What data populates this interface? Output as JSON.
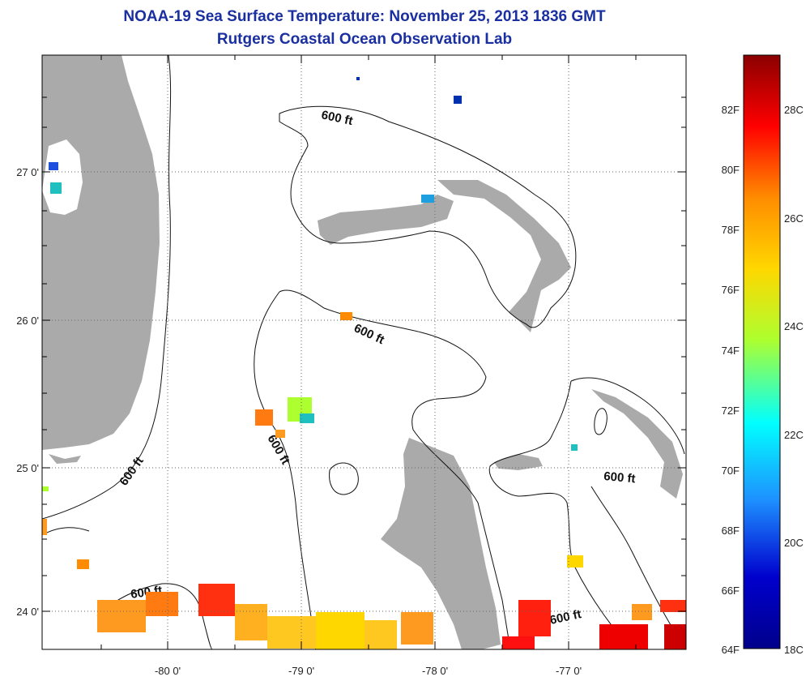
{
  "title": "NOAA-19 Sea Surface Temperature:  November 25, 2013 1836 GMT",
  "subtitle": "Rutgers Coastal Ocean Observation Lab",
  "lon_ticks": [
    "-80 0'",
    "-79 0'",
    "-78 0'",
    "-77 0'"
  ],
  "lat_ticks": [
    "27 0'",
    "26 0'",
    "25 0'",
    "24 0'"
  ],
  "contour_label": "600 ft",
  "colorbar": {
    "fahrenheit": [
      "82F",
      "80F",
      "78F",
      "76F",
      "74F",
      "72F",
      "70F",
      "68F",
      "66F",
      "64F"
    ],
    "celsius": [
      "28C",
      "26C",
      "24C",
      "22C",
      "20C",
      "18C"
    ],
    "colors": [
      "#8b0000",
      "#ff0000",
      "#ff8c00",
      "#ffd700",
      "#adff2f",
      "#00ffff",
      "#1e90ff",
      "#0000cd",
      "#00008b"
    ]
  },
  "land_color": "#aaaaaa"
}
